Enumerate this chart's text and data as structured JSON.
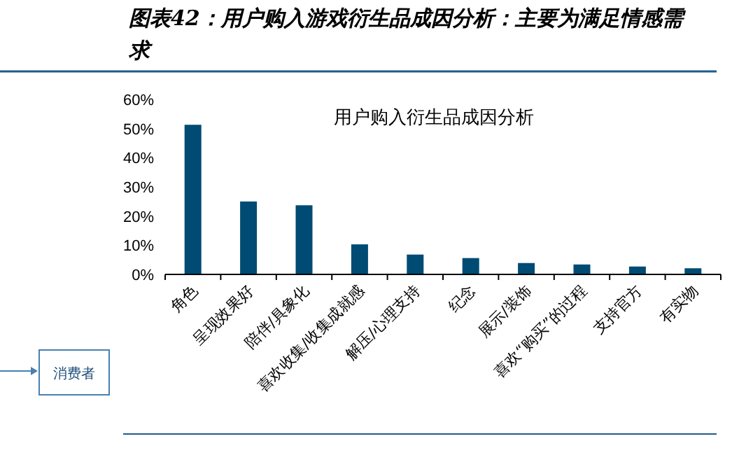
{
  "chart_data": {
    "type": "bar",
    "title": "图表42：用户购入游戏衍生品成因分析：主要为满足情感需求",
    "subtitle": "用户购入衍生品成因分析",
    "categories": [
      "角色",
      "呈现效果好",
      "陪伴/具象化",
      "喜欢收集/收集成就感",
      "解压/心理支持",
      "纪念",
      "展示/装饰",
      "喜欢“购买”的过程",
      "支持官方",
      "有实物"
    ],
    "values": [
      51.3,
      25.0,
      23.7,
      10.3,
      6.8,
      5.6,
      3.9,
      3.4,
      2.7,
      2.1
    ],
    "color": "#004b73",
    "ylim": [
      0,
      60
    ],
    "yticks": [
      {
        "value": 0,
        "label": "0%"
      },
      {
        "value": 10,
        "label": "10%"
      },
      {
        "value": 20,
        "label": "20%"
      },
      {
        "value": 30,
        "label": "30%"
      },
      {
        "value": 40,
        "label": "40%"
      },
      {
        "value": 50,
        "label": "50%"
      },
      {
        "value": 60,
        "label": "60%"
      }
    ],
    "annotations": [
      "消费者"
    ]
  }
}
